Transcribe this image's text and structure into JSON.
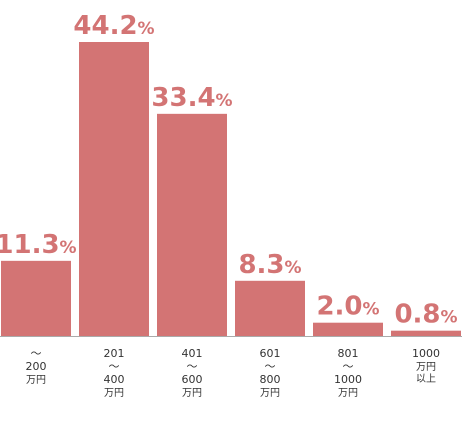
{
  "chart_data": {
    "type": "bar",
    "categories": [
      [
        "〜",
        "200",
        "万円"
      ],
      [
        "201",
        "〜",
        "400",
        "万円"
      ],
      [
        "401",
        "〜",
        "600",
        "万円"
      ],
      [
        "601",
        "〜",
        "800",
        "万円"
      ],
      [
        "801",
        "〜",
        "1000",
        "万円"
      ],
      [
        "1000",
        "万円",
        "以上"
      ]
    ],
    "values": [
      11.3,
      44.2,
      33.4,
      8.3,
      2.0,
      0.8
    ],
    "value_labels": [
      "11.3",
      "44.2",
      "33.4",
      "8.3",
      "2.0",
      "0.8"
    ],
    "value_unit": "%",
    "title": "",
    "xlabel": "",
    "ylabel": "",
    "ylim": [
      0,
      44.2
    ],
    "grid": false,
    "legend": "none",
    "colors": {
      "bar": "#d37474",
      "label": "#d37474",
      "tick": "#333333",
      "axis": "#aaaaaa"
    }
  }
}
